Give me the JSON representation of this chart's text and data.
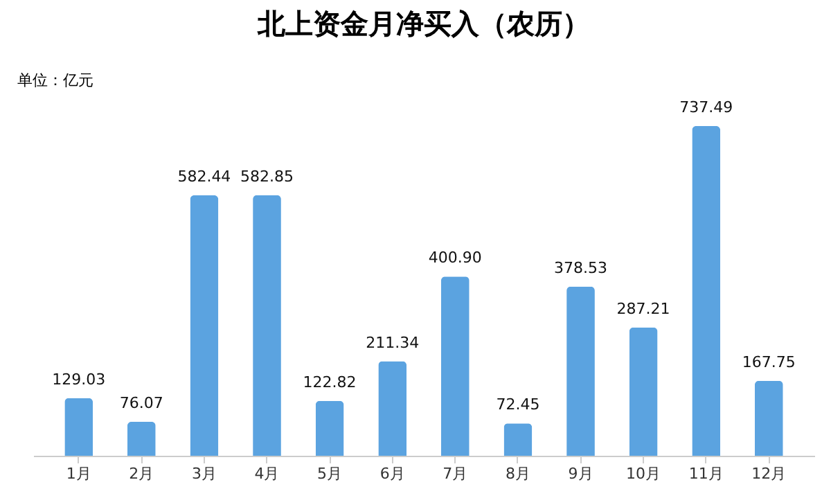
{
  "chart_data": {
    "type": "bar",
    "title": "北上资金月净买入（农历）",
    "ylabel": "单位：亿元",
    "categories": [
      "1月",
      "2月",
      "3月",
      "4月",
      "5月",
      "6月",
      "7月",
      "8月",
      "9月",
      "10月",
      "11月",
      "12月"
    ],
    "values": [
      129.03,
      76.07,
      582.44,
      582.85,
      122.82,
      211.34,
      400.9,
      72.45,
      378.53,
      287.21,
      737.49,
      167.75
    ],
    "value_labels": [
      "129.03",
      "76.07",
      "582.44",
      "582.85",
      "122.82",
      "211.34",
      "400.90",
      "72.45",
      "378.53",
      "287.21",
      "737.49",
      "167.75"
    ],
    "color": "#5ba3e0"
  }
}
